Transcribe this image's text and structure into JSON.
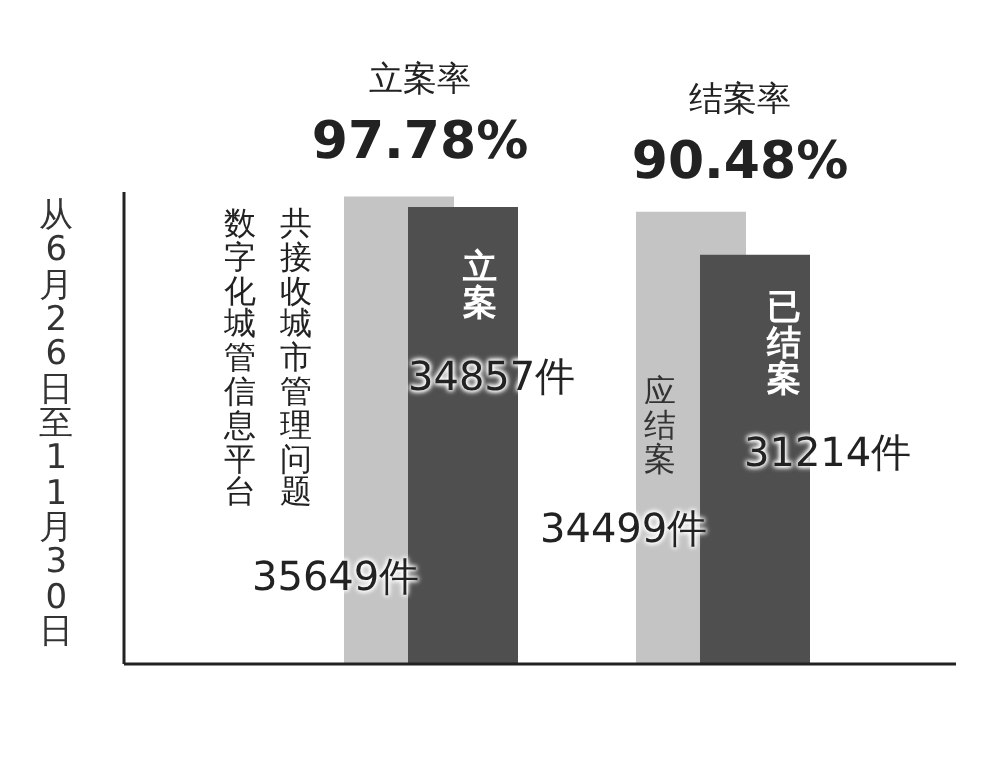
{
  "chart_data": {
    "type": "bar",
    "ylabel": "从6月26日至11月30日",
    "categories": [
      null,
      null
    ],
    "series": [
      {
        "color": "#c4c4c4",
        "values": [
          35649,
          34499
        ],
        "value_labels": [
          "35649件",
          "34499件"
        ]
      },
      {
        "color": "#4f4f4f",
        "values": [
          34857,
          31214
        ],
        "value_labels": [
          "34857件",
          "31214件"
        ]
      }
    ],
    "grid": false,
    "legend": false,
    "annotations": [
      "立案率",
      "97.78%",
      "结案率",
      "90.48%",
      "数字化城管信息平台",
      "共接收城市管理问题",
      "立案",
      "应结案",
      "已结案"
    ]
  }
}
